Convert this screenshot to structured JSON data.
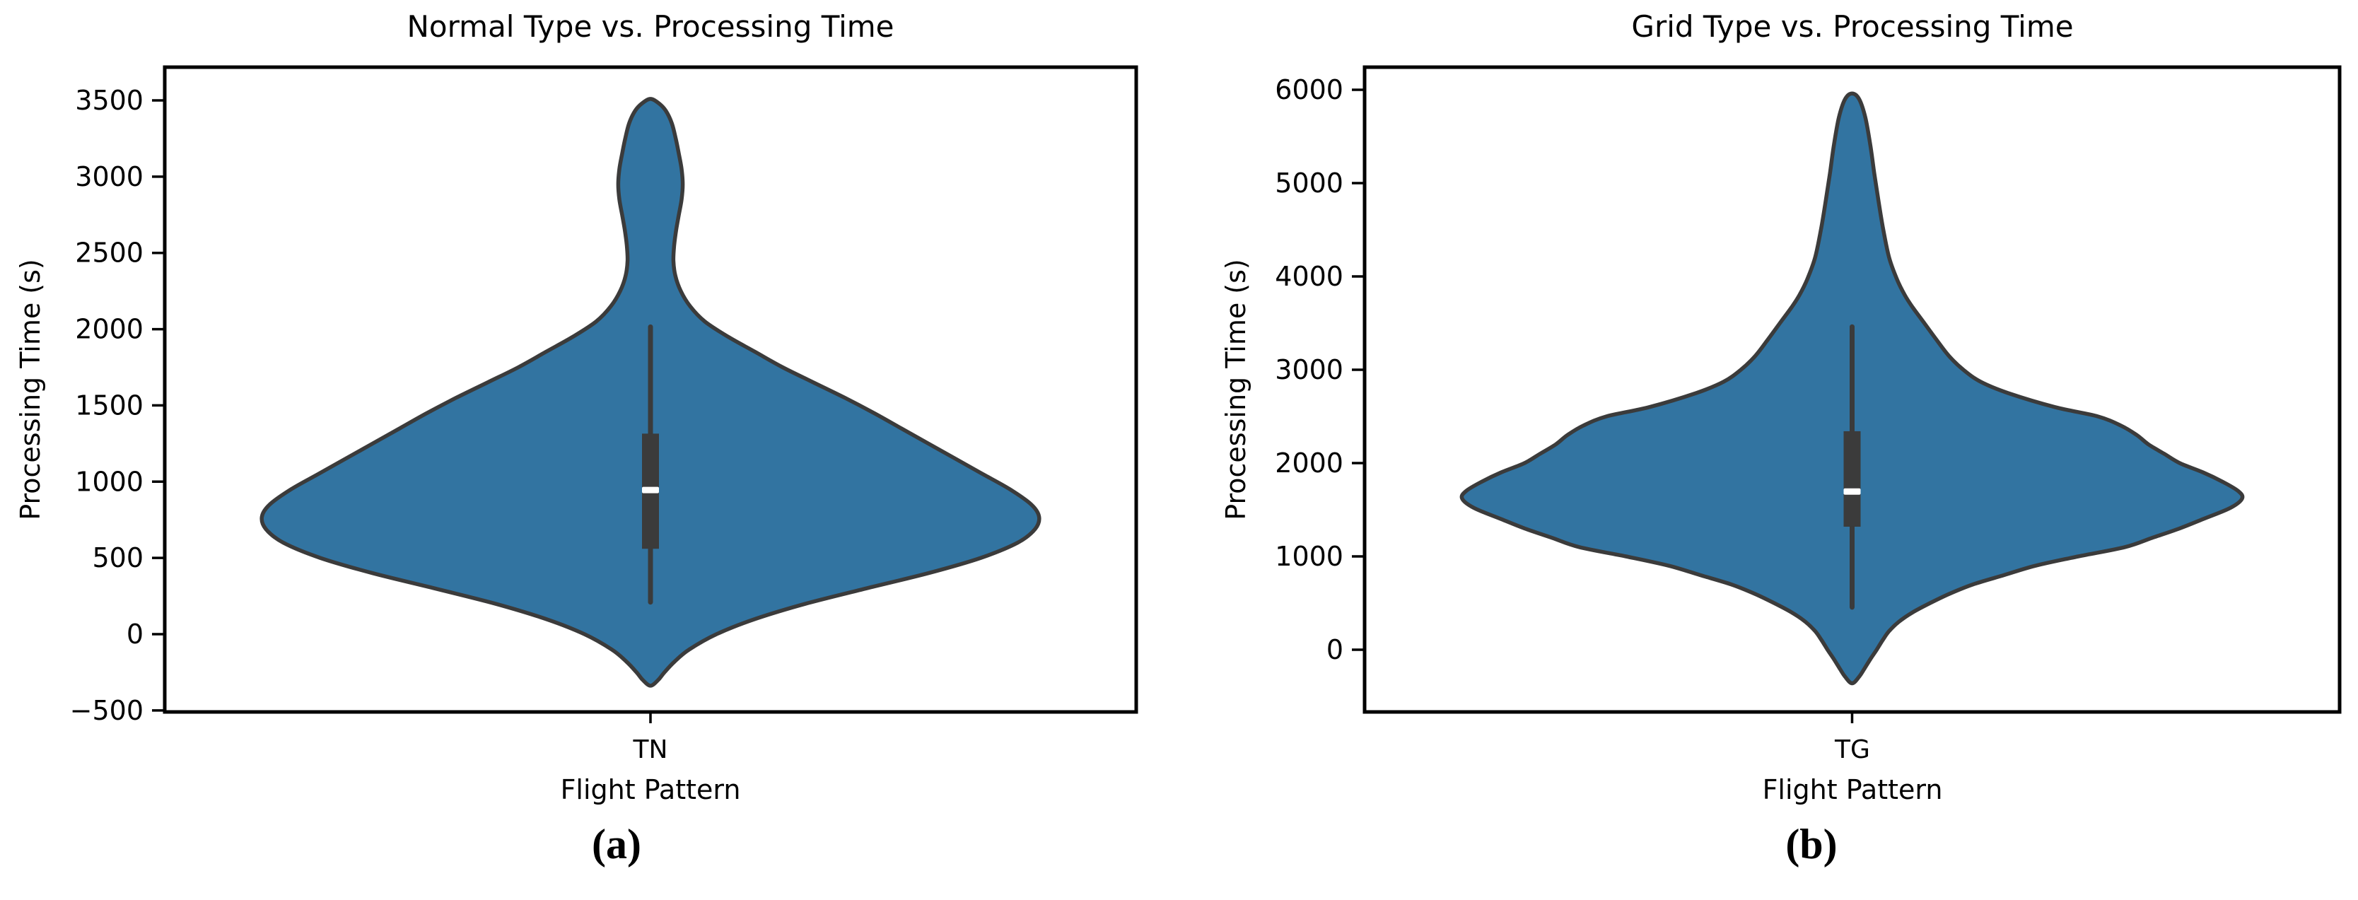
{
  "figure": {
    "background": "#ffffff",
    "colors": {
      "violin_fill": "#3274a1",
      "violin_edge": "#3b3b3b",
      "box_color": "#3b3b3b",
      "whisker_color": "#3b3b3b",
      "median_color": "#ffffff",
      "spine_color": "#000000",
      "tick_color": "#000000",
      "text_color": "#000000"
    },
    "captions": [
      {
        "label": "(a)"
      },
      {
        "label": "(b)"
      }
    ]
  },
  "chart_data": [
    {
      "type": "violin",
      "title": "Normal Type vs. Processing Time",
      "xlabel": "Flight Pattern",
      "ylabel": "Processing Time (s)",
      "category": "TN",
      "ylim": [
        -510,
        3718
      ],
      "yticks": [
        -500,
        0,
        500,
        1000,
        1500,
        2000,
        2500,
        3000,
        3500
      ],
      "grid": false,
      "box_stats": {
        "whisker_low": 210,
        "q1": 560,
        "median": 945,
        "q3": 1315,
        "whisker_high": 2015
      },
      "violin_profile": [
        [
          3510,
          0.0
        ],
        [
          3480,
          0.022
        ],
        [
          3430,
          0.04
        ],
        [
          3350,
          0.055
        ],
        [
          3250,
          0.065
        ],
        [
          3150,
          0.073
        ],
        [
          3050,
          0.08
        ],
        [
          2950,
          0.083
        ],
        [
          2850,
          0.08
        ],
        [
          2750,
          0.073
        ],
        [
          2650,
          0.066
        ],
        [
          2550,
          0.061
        ],
        [
          2450,
          0.059
        ],
        [
          2350,
          0.064
        ],
        [
          2250,
          0.078
        ],
        [
          2150,
          0.102
        ],
        [
          2050,
          0.14
        ],
        [
          1950,
          0.2
        ],
        [
          1850,
          0.27
        ],
        [
          1750,
          0.34
        ],
        [
          1650,
          0.42
        ],
        [
          1550,
          0.5
        ],
        [
          1450,
          0.575
        ],
        [
          1350,
          0.645
        ],
        [
          1250,
          0.715
        ],
        [
          1150,
          0.785
        ],
        [
          1050,
          0.855
        ],
        [
          950,
          0.925
        ],
        [
          850,
          0.98
        ],
        [
          770,
          1.0
        ],
        [
          690,
          0.99
        ],
        [
          600,
          0.945
        ],
        [
          500,
          0.85
        ],
        [
          400,
          0.715
        ],
        [
          300,
          0.555
        ],
        [
          200,
          0.4
        ],
        [
          100,
          0.27
        ],
        [
          0,
          0.17
        ],
        [
          -100,
          0.1
        ],
        [
          -180,
          0.062
        ],
        [
          -250,
          0.036
        ],
        [
          -300,
          0.02
        ],
        [
          -338,
          0.0
        ]
      ]
    },
    {
      "type": "violin",
      "title": "Grid Type vs. Processing Time",
      "xlabel": "Flight Pattern",
      "ylabel": "Processing Time (s)",
      "category": "TG",
      "ylim": [
        -667,
        6242
      ],
      "yticks": [
        0,
        1000,
        2000,
        3000,
        4000,
        5000,
        6000
      ],
      "grid": false,
      "box_stats": {
        "whisker_low": 455,
        "q1": 1318,
        "median": 1695,
        "q3": 2341,
        "whisker_high": 3460
      },
      "violin_profile": [
        [
          5960,
          0.0
        ],
        [
          5900,
          0.018
        ],
        [
          5700,
          0.034
        ],
        [
          5400,
          0.047
        ],
        [
          5100,
          0.057
        ],
        [
          4800,
          0.068
        ],
        [
          4500,
          0.08
        ],
        [
          4200,
          0.095
        ],
        [
          3970,
          0.115
        ],
        [
          3800,
          0.135
        ],
        [
          3670,
          0.155
        ],
        [
          3500,
          0.185
        ],
        [
          3300,
          0.22
        ],
        [
          3140,
          0.25
        ],
        [
          3000,
          0.285
        ],
        [
          2870,
          0.33
        ],
        [
          2750,
          0.4
        ],
        [
          2600,
          0.52
        ],
        [
          2500,
          0.63
        ],
        [
          2400,
          0.69
        ],
        [
          2300,
          0.73
        ],
        [
          2200,
          0.76
        ],
        [
          2100,
          0.8
        ],
        [
          2000,
          0.84
        ],
        [
          1900,
          0.9
        ],
        [
          1800,
          0.95
        ],
        [
          1700,
          0.99
        ],
        [
          1620,
          1.0
        ],
        [
          1520,
          0.97
        ],
        [
          1400,
          0.9
        ],
        [
          1300,
          0.84
        ],
        [
          1200,
          0.77
        ],
        [
          1100,
          0.7
        ],
        [
          1000,
          0.58
        ],
        [
          900,
          0.47
        ],
        [
          800,
          0.39
        ],
        [
          700,
          0.31
        ],
        [
          600,
          0.25
        ],
        [
          500,
          0.2
        ],
        [
          400,
          0.155
        ],
        [
          300,
          0.12
        ],
        [
          200,
          0.095
        ],
        [
          100,
          0.078
        ],
        [
          0,
          0.063
        ],
        [
          -100,
          0.047
        ],
        [
          -200,
          0.032
        ],
        [
          -290,
          0.018
        ],
        [
          -360,
          0.0
        ]
      ]
    }
  ]
}
